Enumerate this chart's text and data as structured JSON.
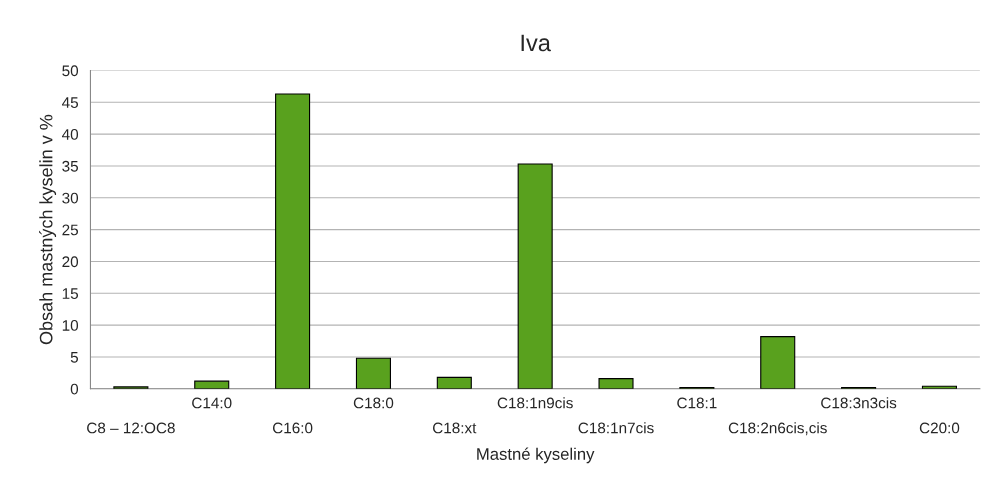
{
  "chart_data": {
    "type": "bar",
    "title": "Iva",
    "xlabel": "Mastné kyseliny",
    "ylabel": "Obsah mastných kyselin v %",
    "categories": [
      "C8 – 12:OC8",
      "C14:0",
      "C16:0",
      "C18:0",
      "C18:xt",
      "C18:1n9cis",
      "C18:1n7cis",
      "C18:1",
      "C18:2n6cis,cis",
      "C18:3n3cis",
      "C20:0"
    ],
    "values": [
      0.3,
      1.2,
      46.3,
      4.8,
      1.8,
      35.3,
      1.6,
      0.2,
      8.2,
      0.2,
      0.4
    ],
    "color": "#59a11e",
    "ylim": [
      0,
      50
    ],
    "yticks": [
      0,
      5,
      10,
      15,
      20,
      25,
      30,
      35,
      40,
      45,
      50
    ],
    "grid": "y",
    "legend": false
  }
}
